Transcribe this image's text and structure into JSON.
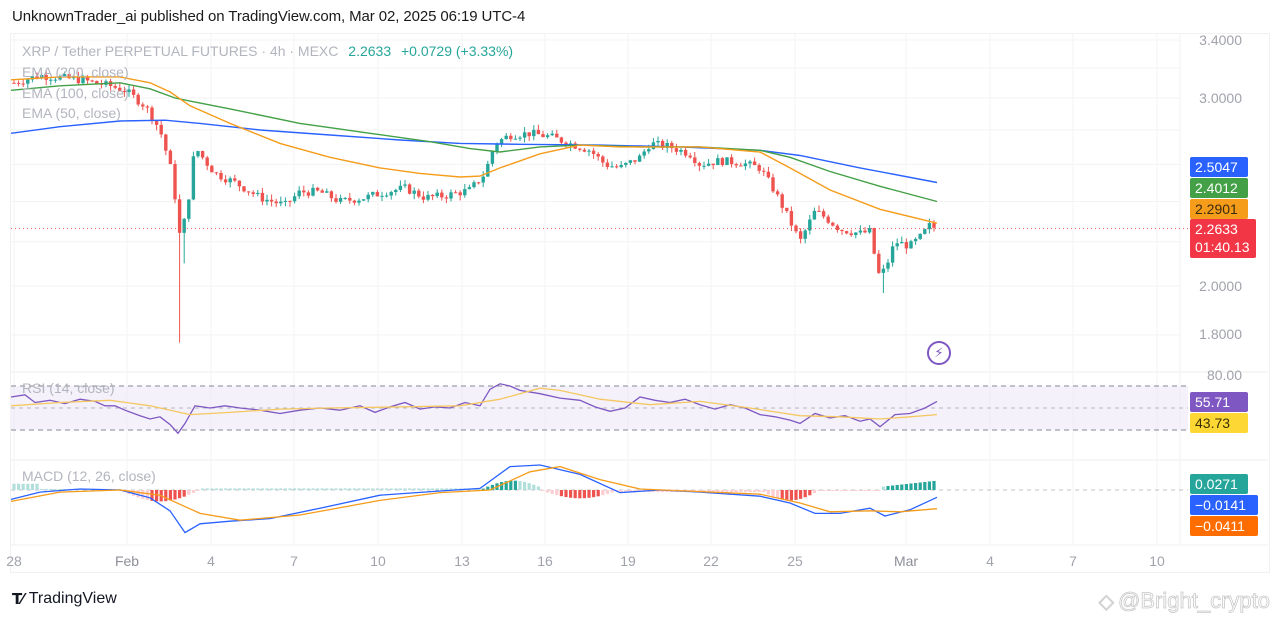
{
  "header": {
    "publisher_line": "UnknownTrader_ai published on TradingView.com, Mar 02, 2025 06:19 UTC-4"
  },
  "symbol": {
    "title": "XRP / Tether PERPETUAL FUTURES · 4h · MEXC",
    "last_price": "2.2633",
    "change": "+0.0729 (+3.33%)"
  },
  "indicators": {
    "ema200_label": "EMA (200, close)",
    "ema100_label": "EMA (100, close)",
    "ema50_label": "EMA (50, close)",
    "rsi_label": "RSI (14, close)",
    "macd_label": "MACD (12, 26, close)"
  },
  "price_axis": {
    "ticks": [
      "3.4000",
      "3.0000",
      "2.0000",
      "1.8000"
    ],
    "rsi_tick": "80.00"
  },
  "badges": {
    "ema200": {
      "value": "2.5047",
      "color": "#2962ff"
    },
    "ema100": {
      "value": "2.4012",
      "color": "#43a047"
    },
    "ema50": {
      "value": "2.2901",
      "color": "#f59c1a"
    },
    "price": {
      "value": "2.2633",
      "countdown": "01:40.13",
      "color": "#f23645"
    },
    "rsi": {
      "value": "55.71",
      "color": "#7e57c2"
    },
    "rsi_ma": {
      "value": "43.73",
      "color": "#fdd835"
    },
    "macd_hist": {
      "value": "0.0271",
      "color": "#26a69a"
    },
    "macd": {
      "value": "−0.0141",
      "color": "#2962ff"
    },
    "macd_signal": {
      "value": "−0.0411",
      "color": "#ff6d00"
    }
  },
  "time_axis": {
    "labels": [
      "28",
      "Feb",
      "4",
      "7",
      "10",
      "13",
      "16",
      "19",
      "22",
      "25",
      "Mar",
      "4",
      "7",
      "10"
    ]
  },
  "footer": {
    "brand": "TradingView",
    "brand_icon": "tv-logo-icon",
    "watermark": "@Bright_crypto",
    "watermark_icon": "binance-square-icon"
  },
  "chart_data": {
    "type": "candlestick",
    "title": "XRP / Tether PERPETUAL FUTURES · 4h · MEXC",
    "timeframe": "4h",
    "x_labels": [
      "28",
      "Feb",
      "4",
      "7",
      "10",
      "13",
      "16",
      "19",
      "22",
      "25",
      "Mar",
      "4",
      "7",
      "10"
    ],
    "y_scale": "log",
    "ylim": [
      1.72,
      3.45
    ],
    "price_ticks": [
      3.4,
      3.0,
      2.0,
      1.8
    ],
    "last": 2.2633,
    "change": 0.0729,
    "change_pct": 3.33,
    "approx_closes": {
      "x": [
        "Jan 28",
        "Jan 31",
        "Feb 1",
        "Feb 2",
        "Feb 3 (low ~1.77)",
        "Feb 4",
        "Feb 6",
        "Feb 8",
        "Feb 10",
        "Feb 12",
        "Feb 14",
        "Feb 16",
        "Feb 18",
        "Feb 20",
        "Feb 22",
        "Feb 24",
        "Feb 25",
        "Feb 27",
        "Feb 28 (low ~1.99)",
        "Mar 1",
        "Mar 2"
      ],
      "close": [
        3.15,
        3.1,
        2.95,
        2.6,
        2.45,
        2.7,
        2.4,
        2.38,
        2.36,
        2.38,
        2.7,
        2.76,
        2.58,
        2.7,
        2.6,
        2.55,
        2.2,
        2.32,
        2.05,
        2.18,
        2.26
      ]
    },
    "series": [
      {
        "name": "EMA (200, close)",
        "color": "#2962ff",
        "last": 2.5047
      },
      {
        "name": "EMA (100, close)",
        "color": "#43a047",
        "last": 2.4012
      },
      {
        "name": "EMA (50, close)",
        "color": "#f59c1a",
        "last": 2.2901
      }
    ],
    "rsi": {
      "name": "RSI (14, close)",
      "value": 55.71,
      "ma": 43.73,
      "upper": 70,
      "middle": 50,
      "lower": 30,
      "axis_tick": 80
    },
    "macd": {
      "name": "MACD (12, 26, close)",
      "histogram": 0.0271,
      "macd": -0.0141,
      "signal": -0.0411
    }
  }
}
